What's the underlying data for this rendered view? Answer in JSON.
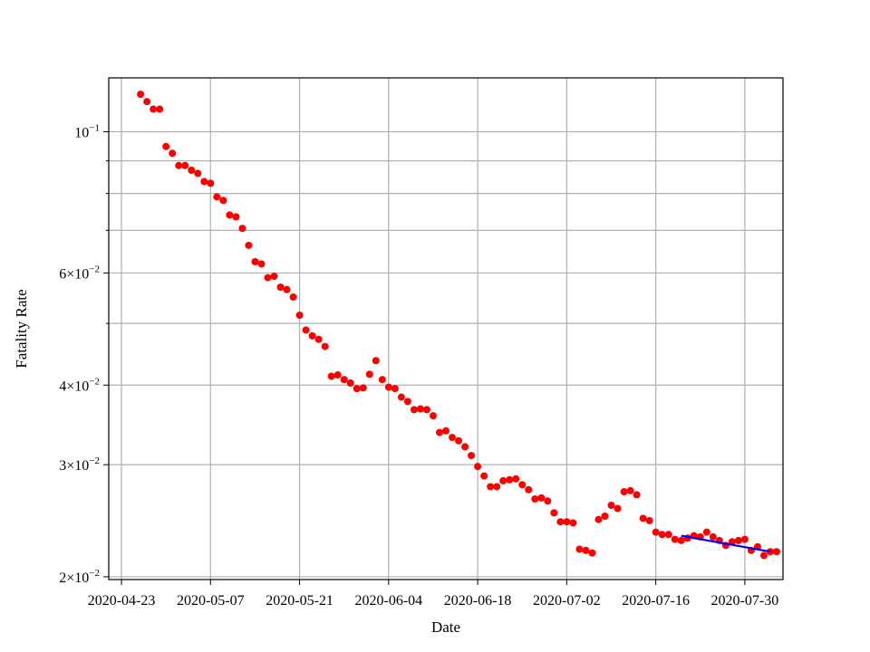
{
  "chart_data": {
    "type": "scatter",
    "xlabel": "Date",
    "ylabel": "Fatality Rate",
    "x_scale": "date",
    "y_scale": "log",
    "grid": true,
    "xlim": [
      "2020-04-21",
      "2020-08-05"
    ],
    "ylim": [
      0.0198,
      0.1215
    ],
    "x_ticks": [
      "2020-04-23",
      "2020-05-07",
      "2020-05-21",
      "2020-06-04",
      "2020-06-18",
      "2020-07-02",
      "2020-07-16",
      "2020-07-30"
    ],
    "y_ticks": [
      {
        "value": 0.1,
        "mantissa": "",
        "exponent": "−1"
      },
      {
        "value": 0.06,
        "mantissa": "6",
        "exponent": "−2"
      },
      {
        "value": 0.04,
        "mantissa": "4",
        "exponent": "−2"
      },
      {
        "value": 0.03,
        "mantissa": "3",
        "exponent": "−2"
      },
      {
        "value": 0.02,
        "mantissa": "2",
        "exponent": "−2"
      }
    ],
    "y_minor_ticks": [
      0.09,
      0.08,
      0.07,
      0.05
    ],
    "colors": {
      "points": "#ff0000",
      "fit": "#0000ff",
      "grid": "#b0b0b0"
    },
    "series": [
      {
        "style": "markers",
        "start": "2020-04-26",
        "step_days": 1,
        "y": [
          0.1145,
          0.1115,
          0.1085,
          0.1085,
          0.0948,
          0.0925,
          0.0885,
          0.0885,
          0.087,
          0.086,
          0.0835,
          0.083,
          0.079,
          0.078,
          0.074,
          0.0735,
          0.0705,
          0.0663,
          0.0625,
          0.062,
          0.059,
          0.0593,
          0.057,
          0.0565,
          0.055,
          0.0515,
          0.0488,
          0.0478,
          0.0472,
          0.046,
          0.0413,
          0.0415,
          0.0408,
          0.0403,
          0.0395,
          0.0396,
          0.0416,
          0.0437,
          0.0408,
          0.0397,
          0.0395,
          0.0383,
          0.0377,
          0.0366,
          0.0367,
          0.0366,
          0.0358,
          0.0337,
          0.0339,
          0.0331,
          0.0327,
          0.032,
          0.031,
          0.0298,
          0.0288,
          0.0277,
          0.0277,
          0.0283,
          0.0284,
          0.0285,
          0.0279,
          0.0274,
          0.0265,
          0.0266,
          0.0263,
          0.0252,
          0.0244,
          0.0244,
          0.0243,
          0.0221,
          0.022,
          0.0218,
          0.0246,
          0.0249,
          0.0259,
          0.0256,
          0.0272,
          0.0273,
          0.0269,
          0.0247,
          0.0245,
          0.0235,
          0.0233,
          0.0233,
          0.0229,
          0.0228,
          0.023,
          0.0232,
          0.0231,
          0.0235,
          0.0231,
          0.0228,
          0.0224,
          0.0227,
          0.0228,
          0.0229,
          0.022,
          0.0223,
          0.0216,
          0.0219,
          0.0219
        ]
      },
      {
        "style": "line",
        "x": [
          "2020-07-20",
          "2020-08-03"
        ],
        "y": [
          0.0232,
          0.0219
        ]
      }
    ]
  }
}
